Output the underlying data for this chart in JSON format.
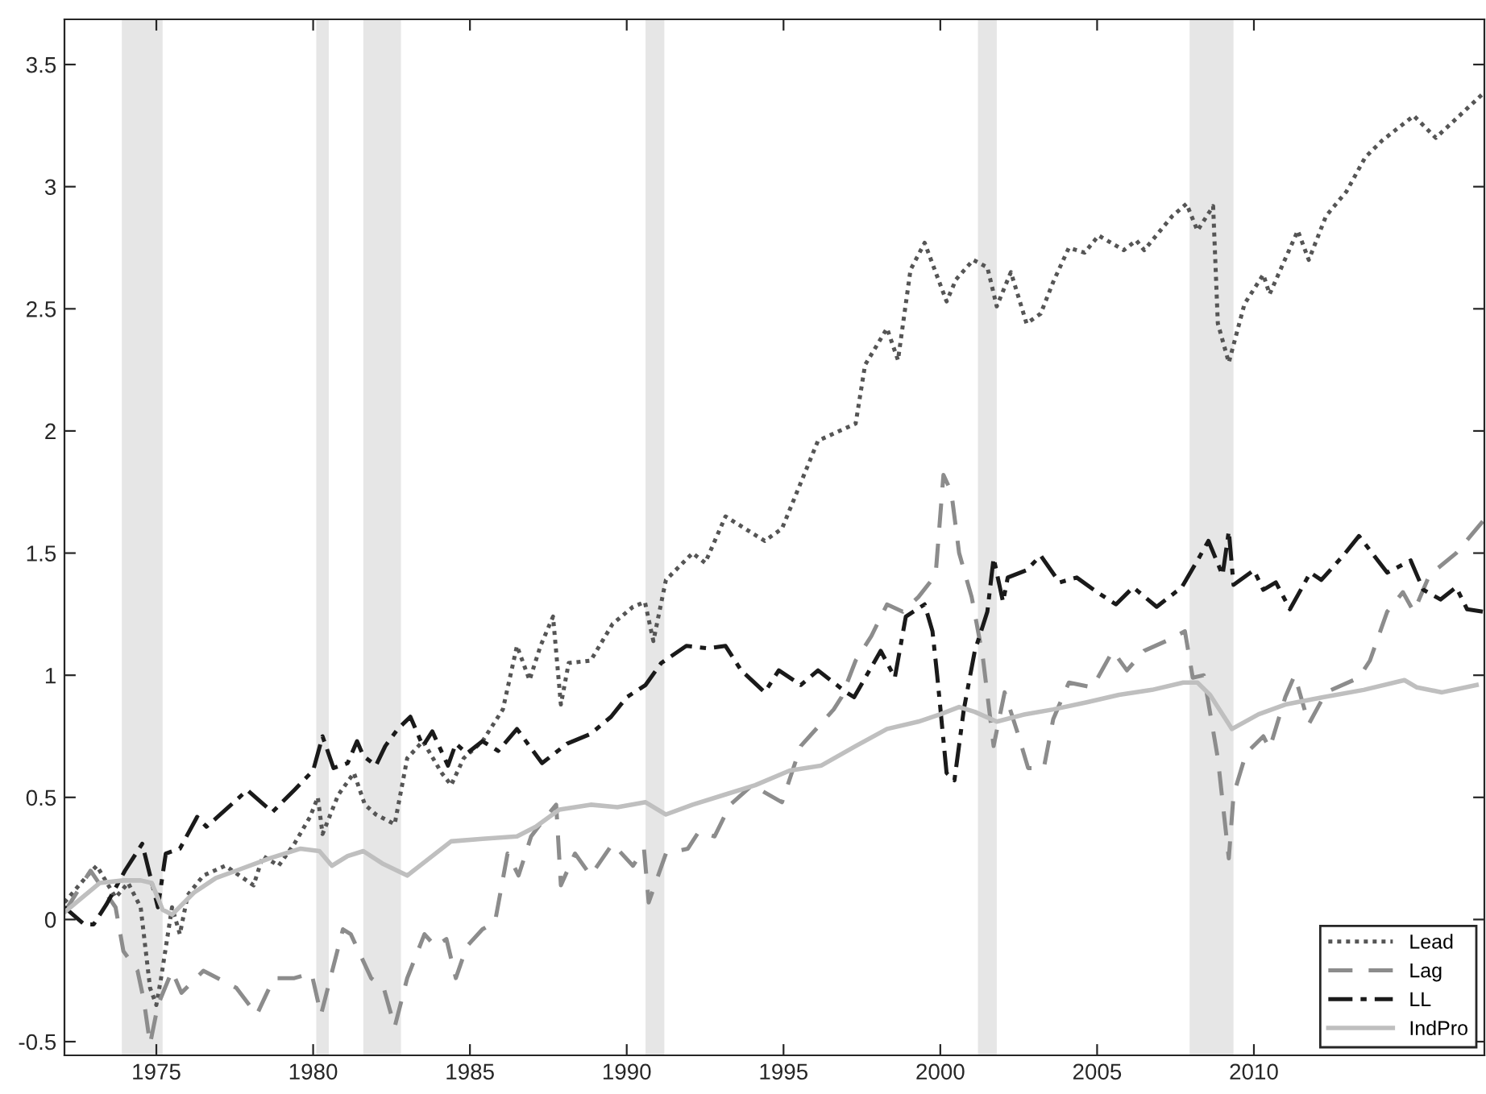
{
  "chart_data": {
    "type": "line",
    "xlim": [
      1972.07,
      2017.35
    ],
    "xticks": [
      1975,
      1980,
      1985,
      1990,
      1995,
      2000,
      2005,
      2010
    ],
    "ylim": [
      -0.556,
      3.685
    ],
    "yticks": [
      -0.5,
      0,
      0.5,
      1,
      1.5,
      2,
      2.5,
      3,
      3.5
    ],
    "grid": false,
    "legend": "bottom right",
    "bands": [
      {
        "axis": "x",
        "from": 1973.9,
        "to": 1975.2,
        "color": "#e6e6e6"
      },
      {
        "axis": "x",
        "from": 1980.1,
        "to": 1980.5,
        "color": "#e6e6e6"
      },
      {
        "axis": "x",
        "from": 1981.6,
        "to": 1982.8,
        "color": "#e6e6e6"
      },
      {
        "axis": "x",
        "from": 1990.6,
        "to": 1991.2,
        "color": "#e6e6e6"
      },
      {
        "axis": "x",
        "from": 2001.2,
        "to": 2001.8,
        "color": "#e6e6e6"
      },
      {
        "axis": "x",
        "from": 2007.95,
        "to": 2009.35,
        "color": "#e6e6e6"
      }
    ],
    "series": [
      {
        "name": "Lead",
        "color": "#555555",
        "line_style": "dotted",
        "x": [
          1972.07,
          1972.8,
          1973.1,
          1973.7,
          1974.1,
          1974.5,
          1974.8,
          1975.0,
          1975.15,
          1975.5,
          1975.75,
          1976.0,
          1976.5,
          1977.2,
          1978.1,
          1978.4,
          1978.9,
          1979.4,
          1979.9,
          1980.15,
          1980.3,
          1980.8,
          1981.3,
          1981.65,
          1982.0,
          1982.6,
          1983.0,
          1983.5,
          1984.1,
          1984.4,
          1984.8,
          1985.4,
          1986.05,
          1986.5,
          1986.9,
          1987.25,
          1987.65,
          1987.9,
          1988.15,
          1988.85,
          1989.55,
          1990.2,
          1990.58,
          1990.85,
          1991.25,
          1992.1,
          1992.5,
          1993.15,
          1994.4,
          1994.95,
          1996.1,
          1997.3,
          1997.6,
          1998.3,
          1998.65,
          1999.05,
          1999.5,
          2000.2,
          2000.5,
          2001.05,
          2001.5,
          2001.8,
          2002.25,
          2002.75,
          2003.2,
          2003.6,
          2004.1,
          2004.6,
          2005.05,
          2005.85,
          2006.25,
          2006.5,
          2007.4,
          2007.85,
          2008.2,
          2008.7,
          2008.85,
          2009.2,
          2009.7,
          2010.3,
          2010.5,
          2011.4,
          2011.75,
          2012.3,
          2012.95,
          2013.55,
          2014.1,
          2015.1,
          2015.8,
          2016.8,
          2017.3
        ],
        "values": [
          0.07,
          0.18,
          0.22,
          0.09,
          0.15,
          0.05,
          -0.28,
          -0.35,
          -0.24,
          0.05,
          -0.06,
          0.1,
          0.18,
          0.22,
          0.14,
          0.26,
          0.22,
          0.31,
          0.42,
          0.5,
          0.35,
          0.51,
          0.6,
          0.47,
          0.43,
          0.39,
          0.66,
          0.73,
          0.6,
          0.55,
          0.66,
          0.73,
          0.86,
          1.12,
          0.98,
          1.12,
          1.24,
          0.88,
          1.05,
          1.06,
          1.21,
          1.28,
          1.3,
          1.14,
          1.39,
          1.5,
          1.46,
          1.65,
          1.55,
          1.6,
          1.96,
          2.03,
          2.27,
          2.42,
          2.29,
          2.66,
          2.77,
          2.53,
          2.62,
          2.7,
          2.67,
          2.51,
          2.65,
          2.44,
          2.48,
          2.61,
          2.75,
          2.73,
          2.8,
          2.74,
          2.78,
          2.74,
          2.88,
          2.93,
          2.82,
          2.92,
          2.44,
          2.28,
          2.52,
          2.64,
          2.56,
          2.82,
          2.7,
          2.88,
          2.98,
          3.12,
          3.19,
          3.29,
          3.2,
          3.32,
          3.38
        ]
      },
      {
        "name": "Lag",
        "color": "#8c8c8c",
        "line_style": "dashed",
        "x": [
          1972.07,
          1972.9,
          1973.7,
          1973.95,
          1974.4,
          1974.6,
          1974.8,
          1975.05,
          1975.5,
          1975.8,
          1976.5,
          1977.55,
          1978.2,
          1978.75,
          1979.4,
          1979.95,
          1980.25,
          1980.55,
          1980.95,
          1981.2,
          1981.85,
          1982.25,
          1982.6,
          1983.0,
          1983.55,
          1983.9,
          1984.25,
          1984.55,
          1984.9,
          1985.4,
          1985.8,
          1986.2,
          1986.55,
          1986.95,
          1987.3,
          1987.75,
          1987.9,
          1988.35,
          1988.85,
          1989.55,
          1990.2,
          1990.55,
          1990.7,
          1991.25,
          1991.95,
          1992.3,
          1992.8,
          1993.3,
          1994.0,
          1994.95,
          1995.55,
          1996.6,
          1996.85,
          1997.3,
          1997.8,
          1998.3,
          1998.8,
          1999.3,
          1999.85,
          2000.1,
          2000.35,
          2000.6,
          2001.0,
          2001.35,
          2001.7,
          2002.05,
          2002.5,
          2002.8,
          2003.3,
          2003.6,
          2004.1,
          2004.85,
          2005.5,
          2005.95,
          2006.5,
          2007.2,
          2007.8,
          2008.05,
          2008.4,
          2008.85,
          2009.2,
          2009.35,
          2009.75,
          2010.3,
          2010.5,
          2011.0,
          2011.3,
          2011.75,
          2012.3,
          2013.35,
          2013.7,
          2014.25,
          2014.75,
          2015.1,
          2015.6,
          2016.45,
          2017.3
        ],
        "values": [
          0.03,
          0.2,
          0.05,
          -0.13,
          -0.21,
          -0.33,
          -0.51,
          -0.35,
          -0.21,
          -0.3,
          -0.21,
          -0.28,
          -0.39,
          -0.24,
          -0.24,
          -0.22,
          -0.39,
          -0.24,
          -0.04,
          -0.06,
          -0.24,
          -0.28,
          -0.44,
          -0.24,
          -0.06,
          -0.11,
          -0.08,
          -0.24,
          -0.11,
          -0.04,
          -0.01,
          0.27,
          0.18,
          0.34,
          0.4,
          0.47,
          0.14,
          0.27,
          0.18,
          0.31,
          0.22,
          0.29,
          0.07,
          0.27,
          0.29,
          0.36,
          0.34,
          0.47,
          0.55,
          0.48,
          0.71,
          0.86,
          0.91,
          1.06,
          1.16,
          1.29,
          1.26,
          1.32,
          1.41,
          1.82,
          1.75,
          1.5,
          1.32,
          1.08,
          0.71,
          0.93,
          0.75,
          0.62,
          0.62,
          0.82,
          0.97,
          0.95,
          1.1,
          1.02,
          1.1,
          1.14,
          1.18,
          0.99,
          1.0,
          0.66,
          0.25,
          0.51,
          0.68,
          0.75,
          0.7,
          0.91,
          1.0,
          0.8,
          0.93,
          0.99,
          1.06,
          1.26,
          1.34,
          1.26,
          1.41,
          1.5,
          1.63
        ]
      },
      {
        "name": "LL",
        "color": "#1a1a1a",
        "line_style": "dashdot",
        "x": [
          1972.07,
          1972.7,
          1973.0,
          1973.4,
          1974.0,
          1974.55,
          1975.05,
          1975.3,
          1975.75,
          1976.3,
          1976.6,
          1977.3,
          1977.9,
          1978.7,
          1979.4,
          1980.0,
          1980.3,
          1980.65,
          1981.1,
          1981.4,
          1981.6,
          1982.0,
          1982.3,
          1982.7,
          1983.1,
          1983.5,
          1983.8,
          1984.3,
          1984.55,
          1984.9,
          1985.4,
          1985.9,
          1986.5,
          1987.3,
          1988.1,
          1988.85,
          1989.5,
          1990.0,
          1990.6,
          1991.1,
          1991.9,
          1992.6,
          1993.15,
          1993.65,
          1994.4,
          1994.85,
          1995.55,
          1996.1,
          1997.0,
          1997.25,
          1998.1,
          1998.55,
          1998.9,
          1999.5,
          1999.75,
          1999.9,
          2000.2,
          2000.45,
          2000.75,
          2001.1,
          2001.5,
          2001.7,
          2002.0,
          2002.15,
          2002.75,
          2003.2,
          2003.8,
          2004.35,
          2005.0,
          2005.6,
          2006.15,
          2006.9,
          2007.7,
          2008.2,
          2008.55,
          2009.0,
          2009.2,
          2009.35,
          2010.0,
          2010.3,
          2010.7,
          2011.15,
          2011.8,
          2012.15,
          2012.85,
          2013.35,
          2014.25,
          2015.0,
          2015.4,
          2015.95,
          2016.45,
          2016.8,
          2017.3
        ],
        "values": [
          0.05,
          -0.02,
          -0.02,
          0.06,
          0.2,
          0.31,
          0.05,
          0.27,
          0.29,
          0.42,
          0.38,
          0.46,
          0.53,
          0.44,
          0.53,
          0.61,
          0.75,
          0.62,
          0.64,
          0.73,
          0.67,
          0.63,
          0.71,
          0.78,
          0.83,
          0.71,
          0.77,
          0.63,
          0.72,
          0.68,
          0.73,
          0.69,
          0.78,
          0.64,
          0.72,
          0.76,
          0.83,
          0.91,
          0.96,
          1.05,
          1.12,
          1.11,
          1.12,
          1.02,
          0.93,
          1.02,
          0.96,
          1.02,
          0.93,
          0.91,
          1.1,
          0.99,
          1.24,
          1.29,
          1.18,
          1.0,
          0.6,
          0.57,
          0.86,
          1.1,
          1.26,
          1.48,
          1.3,
          1.4,
          1.43,
          1.49,
          1.38,
          1.4,
          1.34,
          1.29,
          1.36,
          1.28,
          1.36,
          1.47,
          1.55,
          1.41,
          1.59,
          1.37,
          1.43,
          1.35,
          1.38,
          1.27,
          1.42,
          1.39,
          1.49,
          1.57,
          1.42,
          1.47,
          1.35,
          1.31,
          1.36,
          1.27,
          1.26
        ]
      },
      {
        "name": "IndPro",
        "color": "#bfbfbf",
        "line_style": "solid",
        "x": [
          1972.07,
          1973.2,
          1973.95,
          1974.5,
          1974.85,
          1975.2,
          1975.5,
          1976.2,
          1976.9,
          1977.55,
          1978.6,
          1979.6,
          1980.2,
          1980.6,
          1981.1,
          1981.6,
          1982.2,
          1983.0,
          1983.7,
          1984.4,
          1985.4,
          1986.5,
          1987.1,
          1987.85,
          1988.85,
          1989.7,
          1990.6,
          1991.25,
          1992.1,
          1993.1,
          1994.1,
          1995.2,
          1996.2,
          1997.3,
          1998.3,
          1999.3,
          2000.0,
          2000.6,
          2001.1,
          2001.8,
          2002.7,
          2003.6,
          2004.7,
          2005.7,
          2006.75,
          2007.75,
          2008.2,
          2008.6,
          2009.05,
          2009.3,
          2010.15,
          2011.0,
          2012.2,
          2013.5,
          2014.8,
          2015.2,
          2016.0,
          2017.1
        ],
        "values": [
          0.03,
          0.15,
          0.16,
          0.16,
          0.15,
          0.04,
          0.02,
          0.11,
          0.17,
          0.2,
          0.25,
          0.29,
          0.28,
          0.22,
          0.26,
          0.28,
          0.23,
          0.18,
          0.25,
          0.32,
          0.33,
          0.34,
          0.38,
          0.45,
          0.47,
          0.46,
          0.48,
          0.43,
          0.47,
          0.51,
          0.55,
          0.61,
          0.63,
          0.71,
          0.78,
          0.81,
          0.84,
          0.87,
          0.85,
          0.81,
          0.84,
          0.86,
          0.89,
          0.92,
          0.94,
          0.97,
          0.97,
          0.92,
          0.83,
          0.78,
          0.84,
          0.88,
          0.91,
          0.94,
          0.98,
          0.95,
          0.93,
          0.96
        ]
      }
    ]
  }
}
